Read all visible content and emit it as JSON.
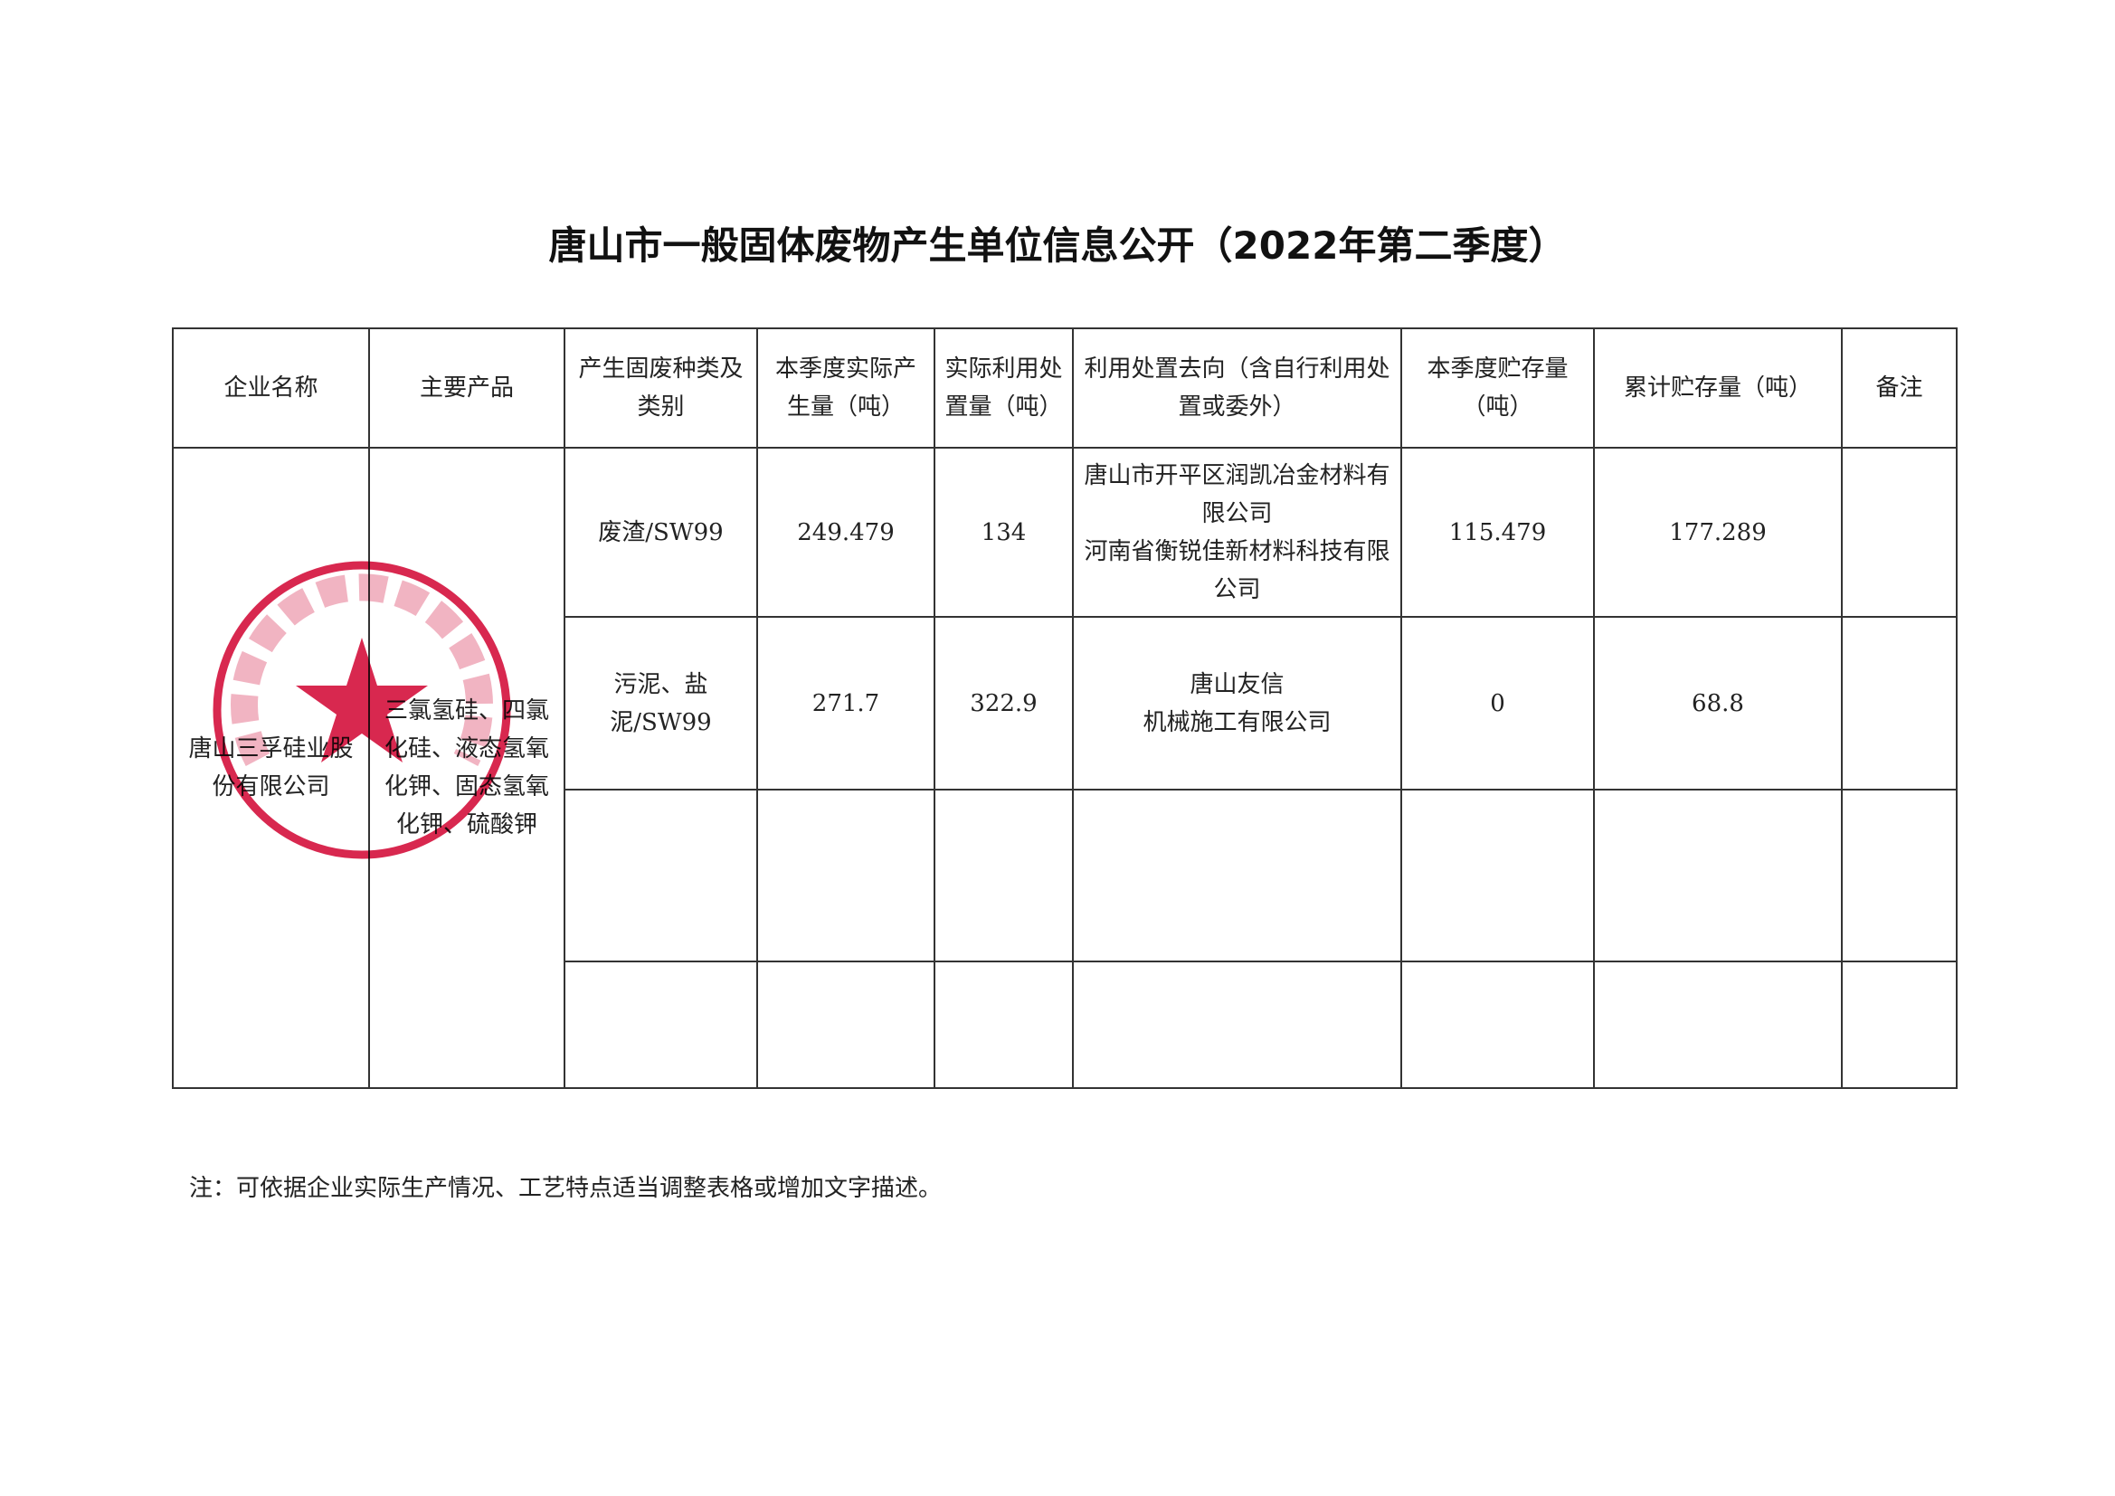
{
  "title": "唐山市一般固体废物产生单位信息公开（2022年第二季度）",
  "table": {
    "headers": [
      "企业名称",
      "主要产品",
      "产生固废种类及类别",
      "本季度实际产生量（吨）",
      "实际利用处置量（吨）",
      "利用处置去向（含自行利用处置或委外）",
      "本季度贮存量（吨）",
      "累计贮存量（吨）",
      "备注"
    ],
    "company": "唐山三孚硅业股份有限公司",
    "products": "三氯氢硅、四氯化硅、液态氢氧化钾、固态氢氧化钾、硫酸钾",
    "rows": [
      {
        "waste": "废渣/SW99",
        "produced": "249.479",
        "disposed": "134",
        "destination": "唐山市开平区润凯冶金材料有限公司\n河南省衡锐佳新材料科技有限公司",
        "stored": "115.479",
        "cumulative": "177.289",
        "remark": ""
      },
      {
        "waste": "污泥、盐泥/SW99",
        "produced": "271.7",
        "disposed": "322.9",
        "destination": "唐山友信\n机械施工有限公司",
        "stored": "0",
        "cumulative": "68.8",
        "remark": ""
      },
      {
        "waste": "",
        "produced": "",
        "disposed": "",
        "destination": "",
        "stored": "",
        "cumulative": "",
        "remark": ""
      },
      {
        "waste": "",
        "produced": "",
        "disposed": "",
        "destination": "",
        "stored": "",
        "cumulative": "",
        "remark": ""
      }
    ]
  },
  "note": "注：可依据企业实际生产情况、工艺特点适当调整表格或增加文字描述。",
  "stamp": {
    "text": "唐山三孚硅业股份有限公司",
    "color": "#d8284f"
  }
}
